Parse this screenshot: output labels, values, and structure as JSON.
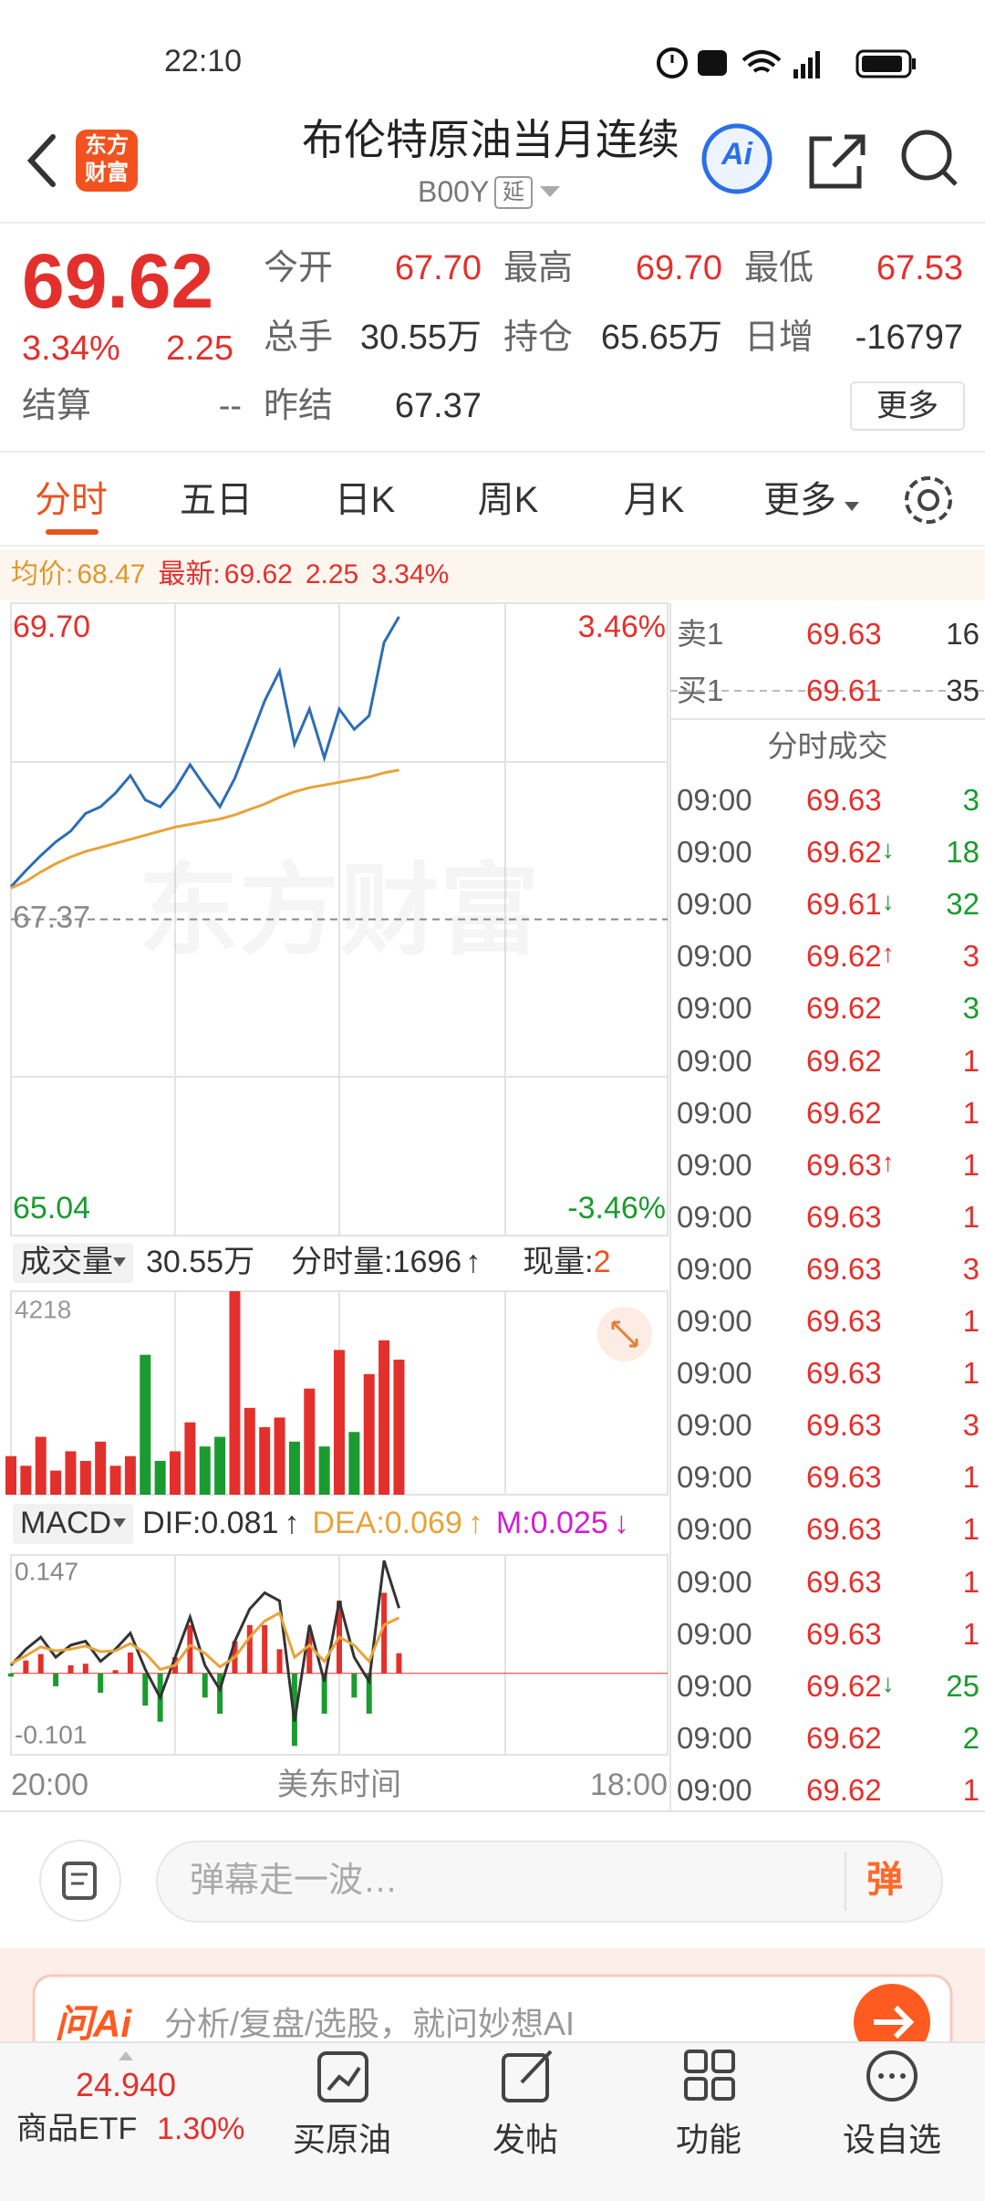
{
  "status_bar": {
    "time": "22:10"
  },
  "header": {
    "logo": [
      "东方",
      "财富"
    ],
    "title": "布伦特原油当月连续",
    "code": "B00Y",
    "tag": "延",
    "ai": "Ai"
  },
  "quote": {
    "price": "69.62",
    "change_pct": "3.34%",
    "change": "2.25",
    "settle_label": "结算",
    "settle": "--",
    "fields": [
      {
        "label": "今开",
        "value": "67.70"
      },
      {
        "label": "最高",
        "value": "69.70"
      },
      {
        "label": "最低",
        "value": "67.53"
      },
      {
        "label": "总手",
        "value": "30.55万"
      },
      {
        "label": "持仓",
        "value": "65.65万"
      },
      {
        "label": "日增",
        "value": "-16797"
      },
      {
        "label": "昨结",
        "value": "67.37"
      }
    ],
    "more": "更多"
  },
  "tabs": {
    "items": [
      "分时",
      "五日",
      "日K",
      "周K",
      "月K",
      "更多"
    ],
    "active": 0
  },
  "info_bar": {
    "avg_label": "均价:",
    "avg": "68.47",
    "latest_label": "最新:",
    "latest": "69.62",
    "change": "2.25",
    "change_pct": "3.34%"
  },
  "watermark": "东方财富",
  "chart_data": [
    {
      "type": "line",
      "x": [
        0,
        30,
        60,
        90,
        120,
        150,
        180,
        210,
        240,
        270,
        300,
        330,
        360,
        390,
        420,
        450,
        480,
        510,
        540,
        570,
        600,
        630,
        660,
        690,
        720,
        750,
        780
      ],
      "xlim": [
        0,
        1320
      ],
      "ylim": [
        65.04,
        69.7
      ],
      "yticks": [
        {
          "value": 69.7,
          "label": "69.70"
        },
        67.37,
        65.04
      ],
      "ytick_colors": [
        "#e4302c",
        "#8a8a8a",
        "#1a9b2f"
      ],
      "y2lim": [
        -3.46,
        3.46
      ],
      "y2ticks": [
        {
          "value": 3.46,
          "label": "3.46%"
        },
        {
          "value": -3.46,
          "label": "-3.46%"
        }
      ],
      "y2tick_colors": [
        "#e4302c",
        "#1a9b2f"
      ],
      "series": [
        {
          "color": "#2d6db5",
          "values": [
            67.61,
            67.73,
            67.84,
            67.94,
            68.02,
            68.15,
            68.2,
            68.3,
            68.43,
            68.25,
            68.2,
            68.33,
            68.51,
            68.35,
            68.2,
            68.41,
            68.69,
            68.98,
            69.2,
            68.66,
            68.92,
            68.56,
            68.92,
            68.77,
            68.87,
            69.41,
            69.6
          ]
        },
        {
          "color": "#e8a33a",
          "values": [
            67.6,
            67.65,
            67.72,
            67.78,
            67.83,
            67.87,
            67.9,
            67.93,
            67.96,
            67.99,
            68.02,
            68.05,
            68.07,
            68.09,
            68.11,
            68.14,
            68.18,
            68.22,
            68.27,
            68.31,
            68.34,
            68.36,
            68.38,
            68.4,
            68.42,
            68.45,
            68.47
          ]
        }
      ]
    },
    {
      "type": "bar",
      "title": "成交量",
      "total": "30.55万",
      "period_label": "分时量:",
      "period": "1696",
      "period_trend": "↑",
      "current_label": "现量:",
      "current": "2",
      "x": [
        0,
        30,
        60,
        90,
        120,
        150,
        180,
        210,
        240,
        270,
        300,
        330,
        360,
        390,
        420,
        450,
        480,
        510,
        540,
        570,
        600,
        630,
        660,
        690,
        720,
        750,
        780
      ],
      "xlim": [
        0,
        1320
      ],
      "ylim": [
        0,
        4218
      ],
      "yticks": [
        4218
      ],
      "values": [
        800,
        600,
        1200,
        500,
        900,
        700,
        1100,
        600,
        800,
        2900,
        700,
        900,
        1500,
        1000,
        1200,
        4218,
        1800,
        1400,
        1600,
        1100,
        2200,
        1000,
        3000,
        1300,
        2500,
        3200,
        2800
      ],
      "up_color": "#e4302c",
      "down_color": "#1a9b2f"
    },
    {
      "type": "macd",
      "title": "MACD",
      "x": [
        0,
        30,
        60,
        90,
        120,
        150,
        180,
        210,
        240,
        270,
        300,
        330,
        360,
        390,
        420,
        450,
        480,
        510,
        540,
        570,
        600,
        630,
        660,
        690,
        720,
        750,
        780
      ],
      "xlim": [
        0,
        1320
      ],
      "xticks": [
        {
          "value": 0,
          "label": "20:00"
        },
        {
          "value": 1320,
          "label": "18:00"
        }
      ],
      "xlabel": "美东时间",
      "ylim": [
        -0.101,
        0.147
      ],
      "yticks": [
        0.147,
        -0.101
      ],
      "up_color": "#e4302c",
      "down_color": "#1a9b2f",
      "series": [
        {
          "name": "DIF:",
          "trend": "↑",
          "color": "#333333",
          "values": [
            0.01,
            0.03,
            0.045,
            0.02,
            0.035,
            0.04,
            0.015,
            0.03,
            0.05,
            0.005,
            -0.03,
            0.02,
            0.07,
            0.01,
            -0.02,
            0.04,
            0.08,
            0.1,
            0.09,
            -0.06,
            0.06,
            -0.01,
            0.09,
            0.02,
            -0.01,
            0.14,
            0.081
          ]
        },
        {
          "name": "DEA:",
          "trend": "↑",
          "color": "#e8a33a",
          "values": [
            0.012,
            0.022,
            0.033,
            0.028,
            0.03,
            0.034,
            0.027,
            0.028,
            0.037,
            0.025,
            0.005,
            0.01,
            0.035,
            0.025,
            0.008,
            0.02,
            0.045,
            0.065,
            0.075,
            0.02,
            0.035,
            0.015,
            0.045,
            0.035,
            0.015,
            0.06,
            0.069
          ]
        },
        {
          "name": "M:",
          "trend": "↓",
          "color": "#d21ed2",
          "type": "bar",
          "values": [
            -0.004,
            0.016,
            0.024,
            -0.016,
            0.01,
            0.012,
            -0.024,
            0.004,
            0.026,
            -0.04,
            -0.06,
            0.02,
            0.06,
            -0.03,
            -0.05,
            0.04,
            0.06,
            0.06,
            0.03,
            -0.09,
            0.05,
            -0.05,
            0.09,
            -0.03,
            -0.05,
            0.1,
            0.025
          ]
        }
      ]
    }
  ],
  "order_book": {
    "asks": [
      {
        "label": "卖1",
        "price": "69.63",
        "volume": "16"
      }
    ],
    "bids": [
      {
        "label": "买1",
        "price": "69.61",
        "volume": "35"
      }
    ]
  },
  "trades": {
    "title": "分时成交",
    "rows": [
      {
        "time": "09:00",
        "price": "69.63",
        "volume": "3",
        "color": "#1a9b2f"
      },
      {
        "time": "09:00",
        "price": "69.62",
        "mark": "↓",
        "volume": "18",
        "color": "#1a9b2f"
      },
      {
        "time": "09:00",
        "price": "69.61",
        "mark": "↓",
        "volume": "32",
        "color": "#1a9b2f"
      },
      {
        "time": "09:00",
        "price": "69.62",
        "mark": "↑",
        "volume": "3",
        "color": "#e4302c"
      },
      {
        "time": "09:00",
        "price": "69.62",
        "volume": "3",
        "color": "#1a9b2f"
      },
      {
        "time": "09:00",
        "price": "69.62",
        "volume": "1",
        "color": "#e4302c"
      },
      {
        "time": "09:00",
        "price": "69.62",
        "volume": "1",
        "color": "#e4302c"
      },
      {
        "time": "09:00",
        "price": "69.63",
        "mark": "↑",
        "volume": "1",
        "color": "#e4302c"
      },
      {
        "time": "09:00",
        "price": "69.63",
        "volume": "1",
        "color": "#e4302c"
      },
      {
        "time": "09:00",
        "price": "69.63",
        "volume": "3",
        "color": "#e4302c"
      },
      {
        "time": "09:00",
        "price": "69.63",
        "volume": "1",
        "color": "#e4302c"
      },
      {
        "time": "09:00",
        "price": "69.63",
        "volume": "1",
        "color": "#e4302c"
      },
      {
        "time": "09:00",
        "price": "69.63",
        "volume": "3",
        "color": "#e4302c"
      },
      {
        "time": "09:00",
        "price": "69.63",
        "volume": "1",
        "color": "#e4302c"
      },
      {
        "time": "09:00",
        "price": "69.63",
        "volume": "1",
        "color": "#e4302c"
      },
      {
        "time": "09:00",
        "price": "69.63",
        "volume": "1",
        "color": "#e4302c"
      },
      {
        "time": "09:00",
        "price": "69.63",
        "volume": "1",
        "color": "#e4302c"
      },
      {
        "time": "09:00",
        "price": "69.62",
        "mark": "↓",
        "volume": "25",
        "color": "#1a9b2f"
      },
      {
        "time": "09:00",
        "price": "69.62",
        "volume": "2",
        "color": "#1a9b2f"
      },
      {
        "time": "09:00",
        "price": "69.62",
        "volume": "1",
        "color": "#e4302c"
      }
    ]
  },
  "comment_bar": {
    "placeholder": "弹幕走一波…",
    "button": "弹"
  },
  "ai_banner": {
    "logo": "问Ai",
    "text": "分析/复盘/选股，就问妙想AI"
  },
  "bottom_nav": {
    "etf": {
      "price": "24.940",
      "name": "商品ETF",
      "change_pct": "1.30%"
    },
    "items": [
      "买原油",
      "发帖",
      "功能",
      "设自选"
    ]
  }
}
